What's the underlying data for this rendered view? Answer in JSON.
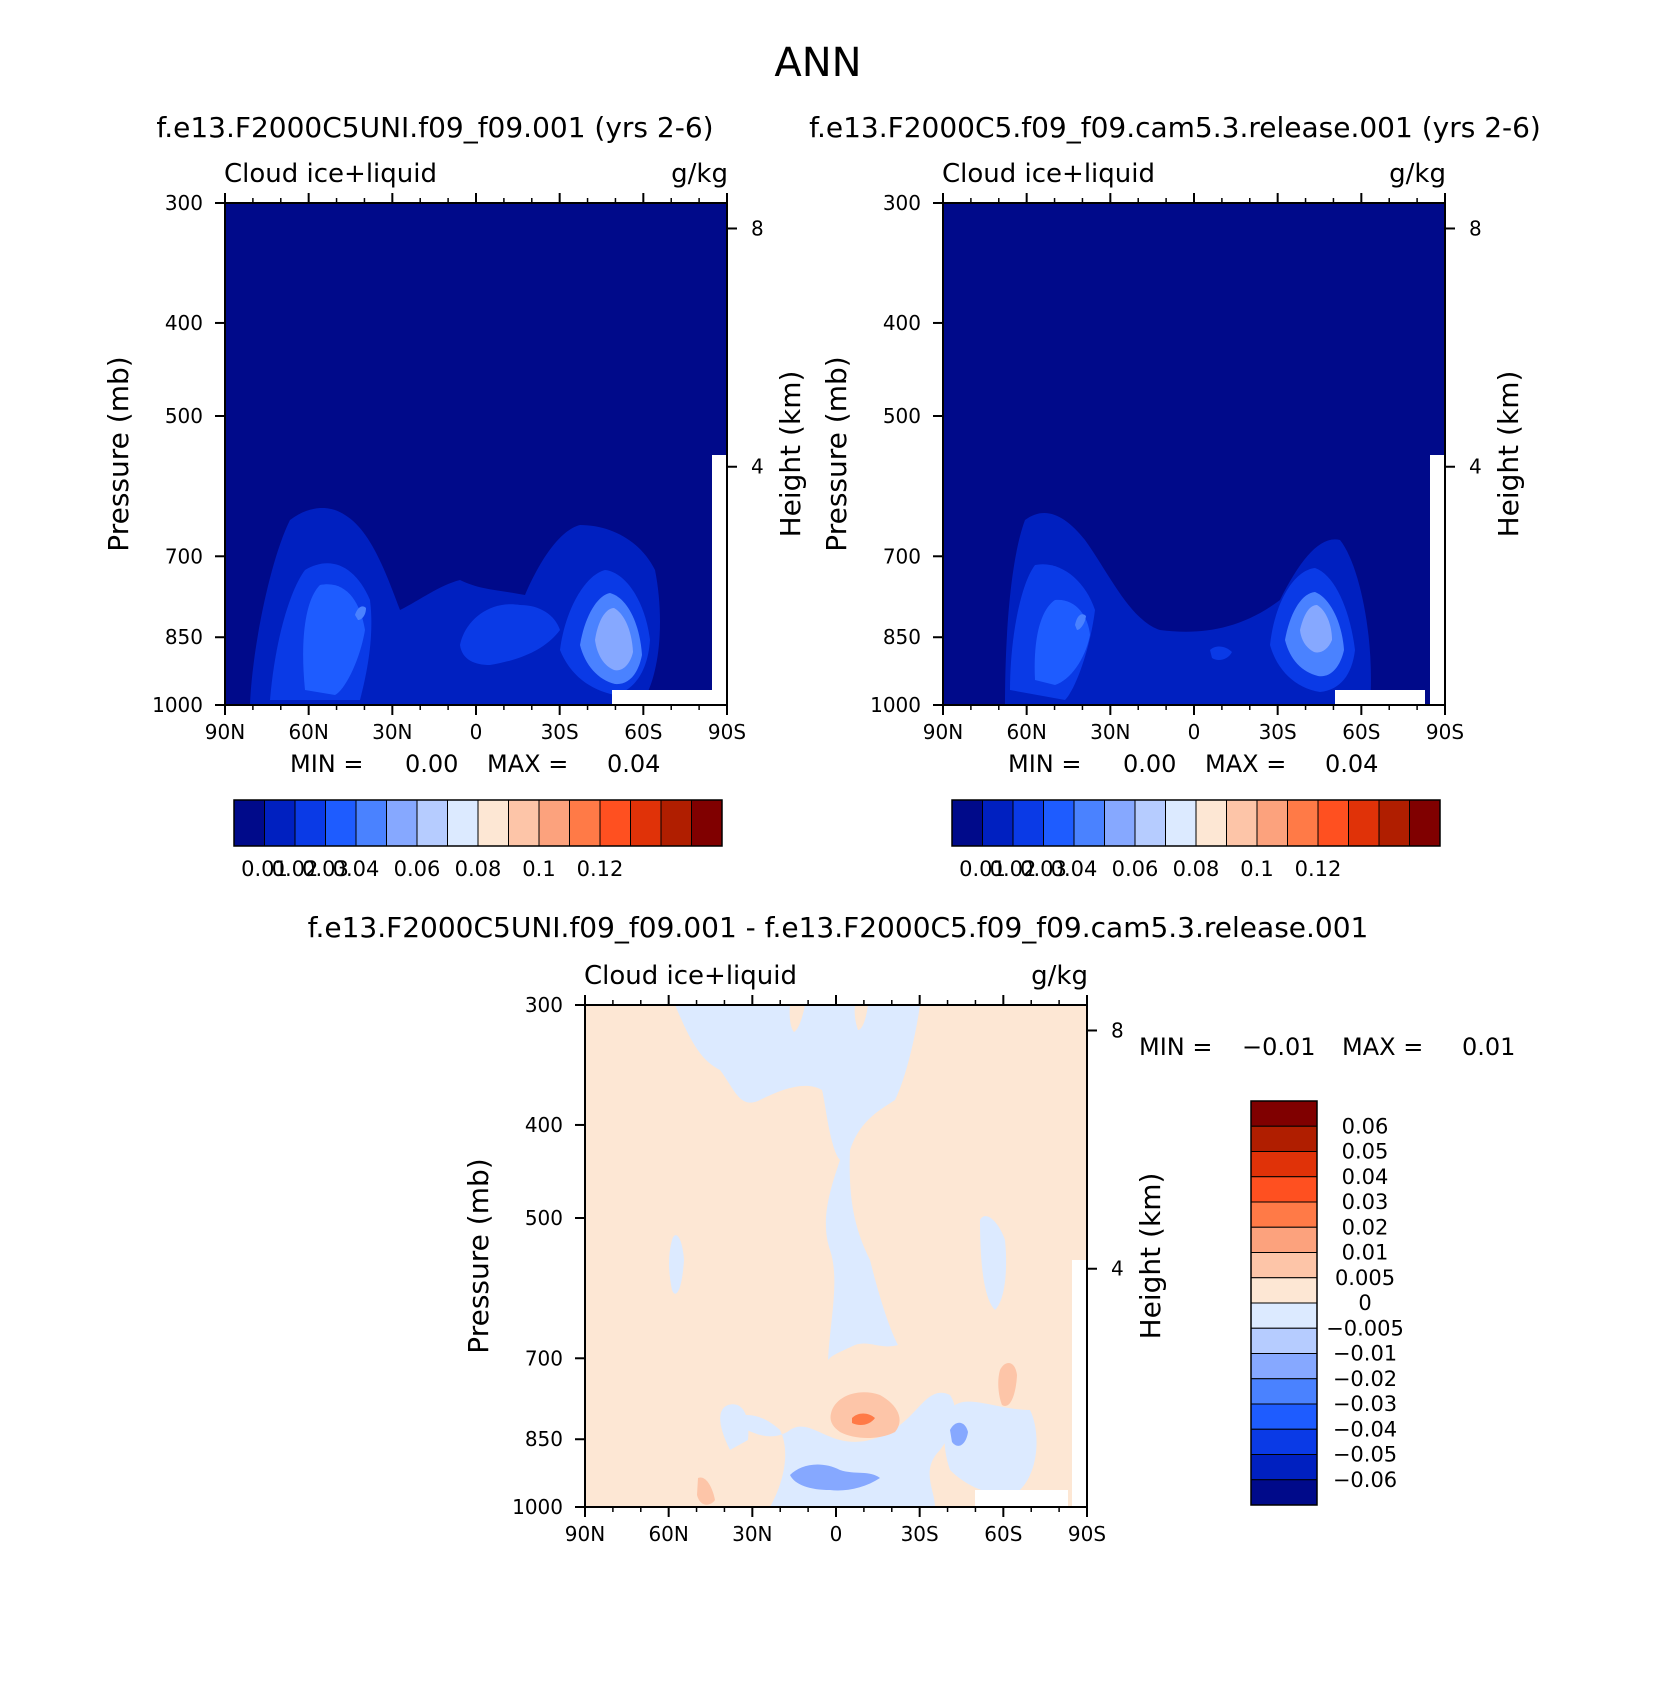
{
  "page_title": "ANN",
  "chart_data": [
    {
      "type": "contour",
      "title": "f.e13.F2000C5UNI.f09_f09.001 (yrs 2-6)",
      "variable": "Cloud ice+liquid",
      "units": "g/kg",
      "xlabel": "",
      "ylabel": "Pressure (mb)",
      "y2label": "Height (km)",
      "x_ticks": [
        "90N",
        "60N",
        "30N",
        "0",
        "30S",
        "60S",
        "90S"
      ],
      "y_ticks": [
        "300",
        "400",
        "500",
        "700",
        "850",
        "1000"
      ],
      "y2_ticks": [
        "8",
        "4"
      ],
      "ylim": [
        300,
        1000
      ],
      "stats": {
        "min_label": "MIN =",
        "min_value": "0.00",
        "max_label": "MAX =",
        "max_value": "0.04"
      },
      "colorbar_labels": [
        "0.01",
        "0.02",
        "0.03",
        "0.04",
        "0.06",
        "0.08",
        "0.1",
        "0.12"
      ]
    },
    {
      "type": "contour",
      "title": "f.e13.F2000C5.f09_f09.cam5.3.release.001 (yrs 2-6)",
      "variable": "Cloud ice+liquid",
      "units": "g/kg",
      "xlabel": "",
      "ylabel": "Pressure (mb)",
      "y2label": "Height (km)",
      "x_ticks": [
        "90N",
        "60N",
        "30N",
        "0",
        "30S",
        "60S",
        "90S"
      ],
      "y_ticks": [
        "300",
        "400",
        "500",
        "700",
        "850",
        "1000"
      ],
      "y2_ticks": [
        "8",
        "4"
      ],
      "ylim": [
        300,
        1000
      ],
      "stats": {
        "min_label": "MIN =",
        "min_value": "0.00",
        "max_label": "MAX =",
        "max_value": "0.04"
      },
      "colorbar_labels": [
        "0.01",
        "0.02",
        "0.03",
        "0.04",
        "0.06",
        "0.08",
        "0.1",
        "0.12"
      ]
    },
    {
      "type": "contour",
      "title": "f.e13.F2000C5UNI.f09_f09.001 - f.e13.F2000C5.f09_f09.cam5.3.release.001",
      "variable": "Cloud ice+liquid",
      "units": "g/kg",
      "xlabel": "",
      "ylabel": "Pressure (mb)",
      "y2label": "Height (km)",
      "x_ticks": [
        "90N",
        "60N",
        "30N",
        "0",
        "30S",
        "60S",
        "90S"
      ],
      "y_ticks": [
        "300",
        "400",
        "500",
        "700",
        "850",
        "1000"
      ],
      "y2_ticks": [
        "8",
        "4"
      ],
      "ylim": [
        300,
        1000
      ],
      "stats": {
        "min_label": "MIN =",
        "min_value": "-0.01",
        "max_label": "MAX =",
        "max_value": "0.01"
      },
      "colorbar_labels": [
        "0.06",
        "0.05",
        "0.04",
        "0.03",
        "0.02",
        "0.01",
        "0.005",
        "0",
        "-0.005",
        "-0.01",
        "-0.02",
        "-0.03",
        "-0.04",
        "-0.05",
        "-0.06"
      ]
    }
  ],
  "colors": {
    "abs_scale": [
      "#000a8a",
      "#0020c0",
      "#0a3ae6",
      "#1e5cff",
      "#4a82ff",
      "#86a8ff",
      "#b6ccff",
      "#dceaff",
      "#fde7d4",
      "#fdc5a8",
      "#fca27d",
      "#ff7a47",
      "#ff5020",
      "#e03208",
      "#b01e00",
      "#800000"
    ],
    "diff_scale": [
      "#800000",
      "#b01e00",
      "#e03208",
      "#ff5020",
      "#ff7a47",
      "#fca27d",
      "#fdc5a8",
      "#fde7d4",
      "#dceaff",
      "#b6ccff",
      "#86a8ff",
      "#4a82ff",
      "#1e5cff",
      "#0a3ae6",
      "#0020c0",
      "#000a8a"
    ]
  }
}
